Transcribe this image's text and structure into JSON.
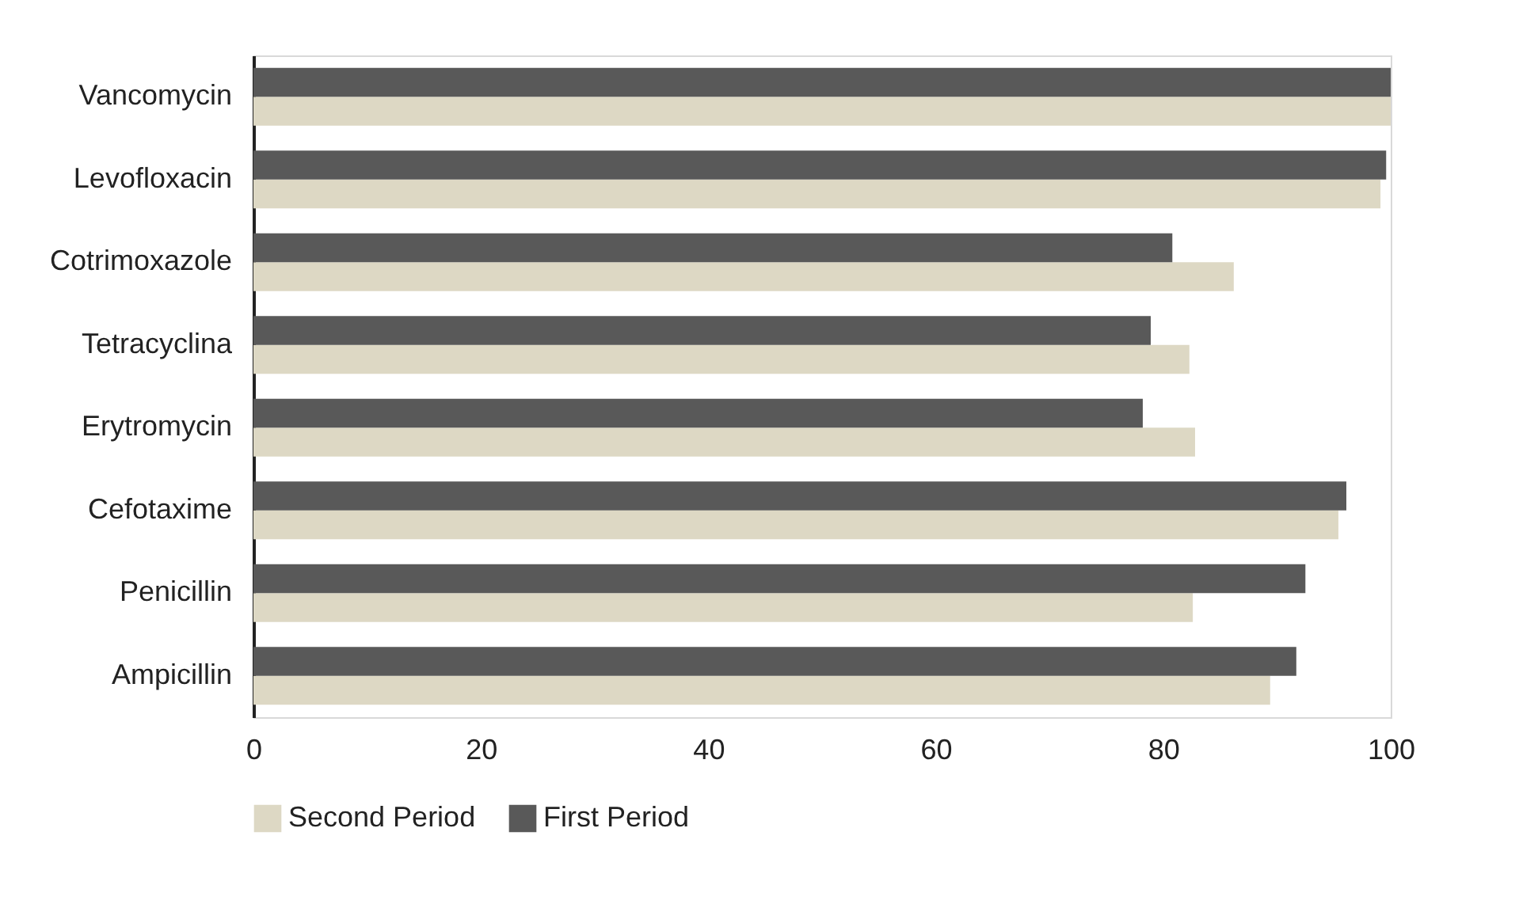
{
  "chart_data": {
    "type": "bar",
    "orientation": "horizontal",
    "categories": [
      "Vancomycin",
      "Levofloxacin",
      "Cotrimoxazole",
      "Tetracyclina",
      "Erytromycin",
      "Cefotaxime",
      "Penicillin",
      "Ampicillin"
    ],
    "series": [
      {
        "name": "Second Period",
        "color": "#ddd8c4",
        "values": [
          100,
          99.1,
          86.2,
          82.3,
          82.8,
          95.4,
          82.6,
          89.4
        ]
      },
      {
        "name": "First Period",
        "color": "#595959",
        "values": [
          100,
          99.6,
          80.8,
          78.9,
          78.2,
          96.1,
          92.5,
          91.7
        ]
      }
    ],
    "xlim": [
      0,
      100
    ],
    "xticks": [
      0,
      20,
      40,
      60,
      80,
      100
    ],
    "grid": false,
    "legend": "bottom"
  }
}
